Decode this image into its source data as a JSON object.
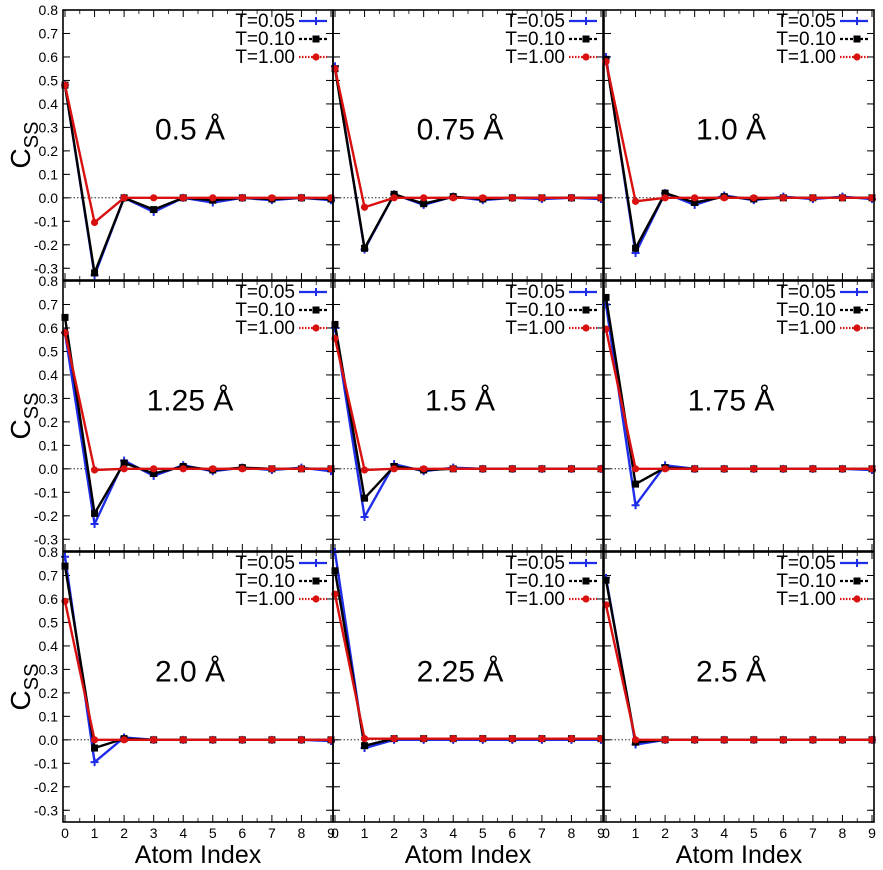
{
  "chart_data": {
    "type": "line",
    "layout": {
      "rows": 3,
      "cols": 3
    },
    "ylabel_main": "C",
    "ylabel_sub": "SS",
    "xlabel": "Atom Index",
    "x": [
      0,
      1,
      2,
      3,
      4,
      5,
      6,
      7,
      8,
      9
    ],
    "x_ticks": [
      "0",
      "1",
      "2",
      "3",
      "4",
      "5",
      "6",
      "7",
      "8",
      "9"
    ],
    "ylim": [
      -0.35,
      0.8
    ],
    "y_ticks": [
      "-0.3",
      "-0.2",
      "-0.1",
      "0.0",
      "0.1",
      "0.2",
      "0.3",
      "0.4",
      "0.5",
      "0.6",
      "0.7",
      "0.8"
    ],
    "zero_line": "dotted",
    "legend": {
      "placement": "top-right",
      "entries": [
        "T=0.05",
        "T=0.10",
        "T=1.00"
      ]
    },
    "series_colors": {
      "T=0.05": "#1f2de8",
      "T=0.10": "#000000",
      "T=1.00": "#d81010"
    },
    "series_markers": {
      "T=0.05": "plus",
      "T=0.10": "square",
      "T=1.00": "circle"
    },
    "panels": [
      {
        "label": "0.5 Å",
        "series": [
          {
            "name": "T=0.05",
            "values": [
              0.48,
              -0.33,
              0.0,
              -0.06,
              0.0,
              -0.02,
              0.0,
              -0.01,
              0.0,
              -0.01
            ]
          },
          {
            "name": "T=0.10",
            "values": [
              0.48,
              -0.32,
              0.0,
              -0.05,
              0.0,
              -0.01,
              0.0,
              -0.005,
              0.0,
              -0.005
            ]
          },
          {
            "name": "T=1.00",
            "values": [
              0.48,
              -0.105,
              0.0,
              0.0,
              0.0,
              0.0,
              0.0,
              0.0,
              0.0,
              0.0
            ]
          }
        ]
      },
      {
        "label": "0.75 Å",
        "series": [
          {
            "name": "T=0.05",
            "values": [
              0.56,
              -0.22,
              0.015,
              -0.03,
              0.005,
              -0.01,
              0.0,
              -0.005,
              0.0,
              -0.005
            ]
          },
          {
            "name": "T=0.10",
            "values": [
              0.55,
              -0.215,
              0.015,
              -0.025,
              0.005,
              -0.005,
              0.0,
              0.0,
              0.0,
              0.0
            ]
          },
          {
            "name": "T=1.00",
            "values": [
              0.55,
              -0.04,
              0.0,
              0.0,
              0.0,
              0.0,
              0.0,
              0.0,
              0.0,
              0.0
            ]
          }
        ]
      },
      {
        "label": "1.0 Å",
        "series": [
          {
            "name": "T=0.05",
            "values": [
              0.6,
              -0.235,
              0.02,
              -0.03,
              0.01,
              -0.01,
              0.005,
              -0.005,
              0.005,
              -0.005
            ]
          },
          {
            "name": "T=0.10",
            "values": [
              0.59,
              -0.215,
              0.02,
              -0.02,
              0.005,
              -0.005,
              0.0,
              0.0,
              0.0,
              0.0
            ]
          },
          {
            "name": "T=1.00",
            "values": [
              0.58,
              -0.015,
              0.0,
              0.0,
              0.0,
              0.0,
              0.0,
              0.0,
              0.0,
              0.0
            ]
          }
        ]
      },
      {
        "label": "1.25 Å",
        "series": [
          {
            "name": "T=0.05",
            "values": [
              0.58,
              -0.235,
              0.035,
              -0.03,
              0.015,
              -0.01,
              0.005,
              -0.005,
              0.005,
              -0.01
            ]
          },
          {
            "name": "T=0.10",
            "values": [
              0.645,
              -0.19,
              0.025,
              -0.02,
              0.01,
              -0.005,
              0.005,
              0.0,
              0.0,
              0.0
            ]
          },
          {
            "name": "T=1.00",
            "values": [
              0.58,
              -0.005,
              0.0,
              0.0,
              0.0,
              0.0,
              0.0,
              0.0,
              0.0,
              0.0
            ]
          }
        ]
      },
      {
        "label": "1.5 Å",
        "series": [
          {
            "name": "T=0.05",
            "values": [
              0.6,
              -0.205,
              0.02,
              -0.01,
              0.005,
              0.0,
              0.0,
              0.0,
              0.0,
              0.0
            ]
          },
          {
            "name": "T=0.10",
            "values": [
              0.615,
              -0.125,
              0.01,
              -0.005,
              0.0,
              0.0,
              0.0,
              0.0,
              0.0,
              0.0
            ]
          },
          {
            "name": "T=1.00",
            "values": [
              0.555,
              -0.005,
              0.0,
              0.0,
              0.0,
              0.0,
              0.0,
              0.0,
              0.0,
              0.0
            ]
          }
        ]
      },
      {
        "label": "1.75 Å",
        "series": [
          {
            "name": "T=0.05",
            "values": [
              0.7,
              -0.155,
              0.015,
              0.0,
              0.0,
              0.0,
              0.0,
              0.0,
              0.0,
              -0.005
            ]
          },
          {
            "name": "T=0.10",
            "values": [
              0.73,
              -0.065,
              0.005,
              0.0,
              0.0,
              0.0,
              0.0,
              0.0,
              0.0,
              0.0
            ]
          },
          {
            "name": "T=1.00",
            "values": [
              0.595,
              0.0,
              0.0,
              0.0,
              0.0,
              0.0,
              0.0,
              0.0,
              0.0,
              0.0
            ]
          }
        ]
      },
      {
        "label": "2.0 Å",
        "series": [
          {
            "name": "T=0.05",
            "values": [
              0.78,
              -0.095,
              0.01,
              0.0,
              0.0,
              0.0,
              0.0,
              0.0,
              0.0,
              -0.005
            ]
          },
          {
            "name": "T=0.10",
            "values": [
              0.74,
              -0.035,
              0.005,
              0.0,
              0.0,
              0.0,
              0.0,
              0.0,
              0.0,
              0.0
            ]
          },
          {
            "name": "T=1.00",
            "values": [
              0.59,
              0.0,
              0.0,
              0.0,
              0.0,
              0.0,
              0.0,
              0.0,
              0.0,
              0.0
            ]
          }
        ]
      },
      {
        "label": "2.25 Å",
        "series": [
          {
            "name": "T=0.05",
            "values": [
              0.8,
              -0.035,
              0.0,
              0.0,
              0.0,
              0.0,
              0.0,
              0.0,
              0.0,
              0.0
            ]
          },
          {
            "name": "T=0.10",
            "values": [
              0.72,
              -0.025,
              0.005,
              0.005,
              0.005,
              0.005,
              0.005,
              0.005,
              0.005,
              0.005
            ]
          },
          {
            "name": "T=1.00",
            "values": [
              0.62,
              0.005,
              0.005,
              0.005,
              0.005,
              0.005,
              0.005,
              0.005,
              0.005,
              0.005
            ]
          }
        ]
      },
      {
        "label": "2.5 Å",
        "series": [
          {
            "name": "T=0.05",
            "values": [
              0.69,
              -0.02,
              0.0,
              0.0,
              0.0,
              0.0,
              0.0,
              0.0,
              0.0,
              0.0
            ]
          },
          {
            "name": "T=0.10",
            "values": [
              0.68,
              -0.01,
              0.0,
              0.0,
              0.0,
              0.0,
              0.0,
              0.0,
              0.0,
              0.0
            ]
          },
          {
            "name": "T=1.00",
            "values": [
              0.575,
              0.0,
              0.0,
              0.0,
              0.0,
              0.0,
              0.0,
              0.0,
              0.0,
              0.0
            ]
          }
        ]
      }
    ]
  }
}
